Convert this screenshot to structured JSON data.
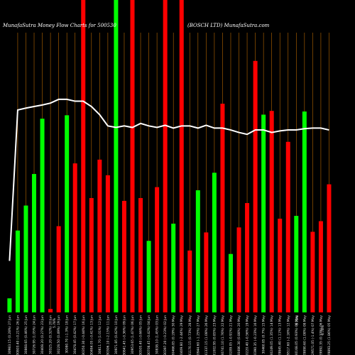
{
  "header": {
    "left": "MunafaSutra  Money Flow  Charts for 500530",
    "mid": "(BOSCH LTD) MunafaSutra.com"
  },
  "colors": {
    "background": "#000000",
    "up": "#00ff00",
    "down": "#ff0000",
    "line": "#ffffff",
    "grid": "#b86800"
  },
  "chart_data": {
    "type": "bar",
    "x": [
      "Fri 06 Jun 2025",
      "Thu 05 Jun 2025",
      "Wed 04 Jun 2025",
      "Tue 03 Jun 2025",
      "Mon 02 Jun 2025",
      "Fri 30 May 2025",
      "Thu 29 May 2025",
      "Wed 28 May 2025",
      "Tue 27 May 2025",
      "Mon 26 May 2025",
      "Fri 23 May 2025",
      "Thu 22 May 2025",
      "Wed 21 May 2025",
      "Tue 20 May 2025",
      "Mon 19 May 2025",
      "Fri 16 May 2025",
      "Thu 15 May 2025",
      "Wed 14 May 2025",
      "Tue 13 May 2025",
      "Mon 12 May 2025",
      "Fri 09 May 2025",
      "Thu 08 May 2025",
      "Wed 07 May 2025",
      "Tue 06 May 2025",
      "Mon 05 May 2025",
      "Fri 02 May 2025",
      "Wed 30 Apr 2025",
      "Tue 29 Apr 2025",
      "Mon 28 Apr 2025",
      "Fri 25 Apr 2025",
      "Thu 24 Apr 2025",
      "Wed 23 Apr 2025",
      "Tue 22 Apr 2025",
      "Mon 21 Apr 2025",
      "Thu 17 Apr 2025",
      "Wed 16 Apr 2025",
      "Tue 15 Apr 2025",
      "Fri 11 Apr 2025",
      "Wed 09 Apr 2025",
      "Tue 08 Apr 2025"
    ],
    "x_labels": [
      "30983.15 (0.28%) 27 Jun",
      "30803.40 (-0.21%) 26 Jun",
      "30868.65 (0.46%) 25 Jun",
      "30726.95 (1.05%) 24 Jun",
      "30408.20 (0.27%) 23 Jun",
      "30325.20 (0.32%) 20 Jun",
      "30228.50 (0.49%) 19 Jun",
      "30080.70 (-1.3%) 18 Jun",
      "30478.45 (0.42%) 17 Jun",
      "30350.30 (-0.44%) 16 Jun",
      "30484.05 (-0.41%) 13 Jun",
      "30611.70 (1.01%) 12 Jun",
      "30306.10 (-2.15%) 11 Jun",
      "30971.85 (0.42%) 10 Jun",
      "30841.45 (-0.36%) 09 Jun",
      "30953.65 (1.47%) 06 Jun",
      "30505.40 (-0.66%) 05 Jun",
      "30708.45 (-0.42%) 04 Jun",
      "30838.10 (1.45%) 03 Jun",
      "30397.20 (-0.23%) 02 Jun",
      "30466.85 (0.19%) 30 May",
      "30409.80 (-2.44%) 29 May",
      "31170.15 (0.73%) 28 May",
      "30944.60 (-1.25%) 27 May",
      "31337.15 (1.08%) 26 May",
      "31002.95 (0.85%) 23 May",
      "30741.10 (1.76%) 22 May",
      "30209.05 (-0.91%) 21 May",
      "30486.30 (0.88%) 20 May",
      "30220.40 (-0.56%) 19 May",
      "30390.35 (-0.23%) 16 May",
      "30460.85 (0.7%) 15 May",
      "30249.05 (1.35%) 14 May",
      "29845.40 (1.11%) 13 May",
      "29517.60 (-2.16%) 12 May",
      "30168.05 (0.93%) 09 May",
      "29890.60 (1.08%) 08 May",
      "29571.05 (-1.4%) 07 May",
      "29992.35 (0.33%) 06 May",
      "29893.25 (1.86%) 05 May"
    ],
    "pct_labels": [
      "5.78%",
      "5.78%",
      "6.78%"
    ],
    "series": [
      {
        "kind": "money_flow_bars",
        "values": [
          4.5,
          26.2,
          34.2,
          44.3,
          62.0,
          1.1,
          27.6,
          63.1,
          47.7,
          100,
          36.6,
          48.9,
          43.9,
          100,
          35.7,
          100,
          36.6,
          22.9,
          40.1,
          100,
          28.4,
          100,
          19.8,
          39.1,
          25.6,
          44.7,
          66.8,
          18.7,
          27.2,
          35.0,
          80.5,
          63.3,
          64.5,
          30.0,
          54.6,
          30.9,
          64.3,
          25.8,
          29.2,
          41.0
        ],
        "direction": [
          "up",
          "up",
          "up",
          "up",
          "up",
          "down",
          "down",
          "up",
          "down",
          "down",
          "down",
          "down",
          "down",
          "up",
          "down",
          "down",
          "down",
          "up",
          "down",
          "down",
          "up",
          "down",
          "down",
          "up",
          "down",
          "up",
          "down",
          "up",
          "down",
          "down",
          "down",
          "up",
          "down",
          "down",
          "down",
          "up",
          "up",
          "down",
          "down",
          "down"
        ]
      },
      {
        "kind": "price_line",
        "values": [
          16.5,
          64.8,
          65.4,
          65.9,
          66.4,
          67.0,
          68.2,
          68.2,
          67.6,
          67.6,
          65.9,
          63.3,
          59.7,
          59.2,
          59.7,
          59.2,
          60.5,
          59.7,
          59.2,
          59.9,
          59.0,
          59.7,
          59.7,
          59.0,
          59.9,
          59.0,
          59.0,
          58.4,
          57.6,
          57.0,
          58.4,
          58.4,
          57.6,
          58.1,
          58.4,
          58.4,
          58.8,
          59.0,
          59.0,
          58.4
        ]
      }
    ],
    "ylim": [
      0,
      100
    ]
  }
}
